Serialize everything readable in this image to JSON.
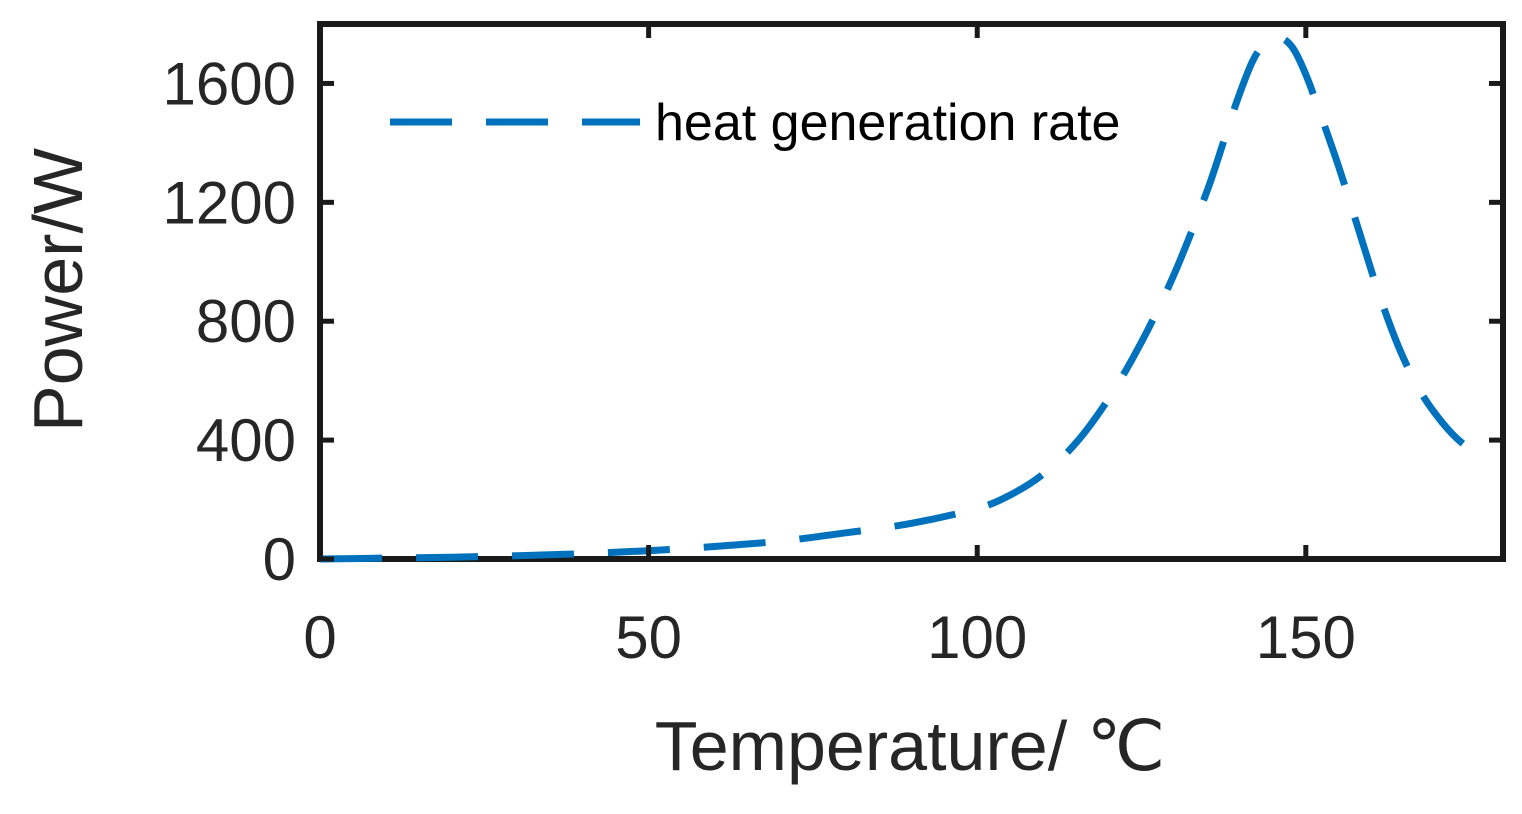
{
  "chart_data": {
    "type": "line",
    "xlabel": "Temperature/ ℃",
    "ylabel": "Power/W",
    "xlim": [
      0,
      180
    ],
    "ylim": [
      0,
      1800
    ],
    "xticks": [
      0,
      50,
      100,
      150
    ],
    "yticks": [
      0,
      400,
      800,
      1200,
      1600
    ],
    "grid": false,
    "legend_position": "top-left",
    "series": [
      {
        "name": "heat generation rate",
        "color": "#0072BD",
        "line_style": "dashed",
        "x": [
          0,
          10,
          20,
          30,
          40,
          50,
          60,
          70,
          80,
          90,
          100,
          105,
          110,
          115,
          120,
          125,
          130,
          135,
          138,
          140,
          142,
          144,
          146,
          148,
          150,
          152,
          155,
          158,
          161,
          164,
          167,
          170,
          173,
          176
        ],
        "values": [
          0,
          3,
          6,
          11,
          18,
          28,
          42,
          60,
          88,
          120,
          170,
          215,
          285,
          390,
          540,
          730,
          960,
          1240,
          1440,
          1570,
          1680,
          1740,
          1755,
          1720,
          1630,
          1510,
          1320,
          1110,
          900,
          720,
          580,
          480,
          405,
          355
        ]
      }
    ]
  }
}
